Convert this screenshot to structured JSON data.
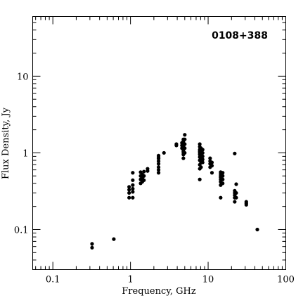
{
  "chart_data": {
    "type": "scatter",
    "title": "0108+388",
    "xlabel": "Frequency, GHz",
    "ylabel": "Flux Density, Jy",
    "x_scale": "log",
    "y_scale": "log",
    "xlim": [
      0.055,
      100
    ],
    "ylim": [
      0.03,
      60
    ],
    "grid": false,
    "legend": "none",
    "x_ticks": [
      {
        "value": 0.1,
        "label": "0.1"
      },
      {
        "value": 1,
        "label": "1"
      },
      {
        "value": 10,
        "label": "10"
      },
      {
        "value": 100,
        "label": "100"
      }
    ],
    "y_ticks": [
      {
        "value": 0.1,
        "label": "0.1"
      },
      {
        "value": 1,
        "label": "1"
      },
      {
        "value": 10,
        "label": "10"
      }
    ],
    "point_color": "#000000",
    "series": [
      {
        "points": [
          [
            0.32,
            0.065
          ],
          [
            0.32,
            0.058
          ],
          [
            0.61,
            0.075
          ],
          [
            0.96,
            0.26
          ],
          [
            0.96,
            0.3
          ],
          [
            0.96,
            0.33
          ],
          [
            0.96,
            0.36
          ],
          [
            1.07,
            0.26
          ],
          [
            1.07,
            0.31
          ],
          [
            1.07,
            0.34
          ],
          [
            1.07,
            0.38
          ],
          [
            1.07,
            0.44
          ],
          [
            1.07,
            0.55
          ],
          [
            1.35,
            0.4
          ],
          [
            1.35,
            0.45
          ],
          [
            1.35,
            0.5
          ],
          [
            1.35,
            0.56
          ],
          [
            1.42,
            0.42
          ],
          [
            1.42,
            0.47
          ],
          [
            1.42,
            0.52
          ],
          [
            1.49,
            0.44
          ],
          [
            1.49,
            0.5
          ],
          [
            1.49,
            0.57
          ],
          [
            1.66,
            0.58
          ],
          [
            1.66,
            0.62
          ],
          [
            2.3,
            0.55
          ],
          [
            2.3,
            0.6
          ],
          [
            2.3,
            0.65
          ],
          [
            2.3,
            0.72
          ],
          [
            2.3,
            0.78
          ],
          [
            2.3,
            0.84
          ],
          [
            2.3,
            0.88
          ],
          [
            2.3,
            0.92
          ],
          [
            2.7,
            1.0
          ],
          [
            3.9,
            1.25
          ],
          [
            3.9,
            1.3
          ],
          [
            4.8,
            0.85
          ],
          [
            4.8,
            0.95
          ],
          [
            4.8,
            1.0
          ],
          [
            4.8,
            1.05
          ],
          [
            4.8,
            1.1
          ],
          [
            4.8,
            1.15
          ],
          [
            4.8,
            1.2
          ],
          [
            4.8,
            1.25
          ],
          [
            4.8,
            1.3
          ],
          [
            4.8,
            1.35
          ],
          [
            4.8,
            1.42
          ],
          [
            4.8,
            1.5
          ],
          [
            5.0,
            1.0
          ],
          [
            5.0,
            1.15
          ],
          [
            5.0,
            1.3
          ],
          [
            5.0,
            1.5
          ],
          [
            5.0,
            1.72
          ],
          [
            4.6,
            1.15
          ],
          [
            4.6,
            1.25
          ],
          [
            4.6,
            1.35
          ],
          [
            7.8,
            0.45
          ],
          [
            7.8,
            0.62
          ],
          [
            7.8,
            0.7
          ],
          [
            7.8,
            0.8
          ],
          [
            7.8,
            0.88
          ],
          [
            7.8,
            0.95
          ],
          [
            7.8,
            1.0
          ],
          [
            7.8,
            1.05
          ],
          [
            7.8,
            1.1
          ],
          [
            7.8,
            1.2
          ],
          [
            7.8,
            1.3
          ],
          [
            8.1,
            0.65
          ],
          [
            8.1,
            0.75
          ],
          [
            8.1,
            0.85
          ],
          [
            8.1,
            0.95
          ],
          [
            8.1,
            1.05
          ],
          [
            8.1,
            1.15
          ],
          [
            8.5,
            0.75
          ],
          [
            8.5,
            0.82
          ],
          [
            8.5,
            0.9
          ],
          [
            8.5,
            1.0
          ],
          [
            8.5,
            1.1
          ],
          [
            10.6,
            0.65
          ],
          [
            10.6,
            0.72
          ],
          [
            10.6,
            0.78
          ],
          [
            10.6,
            0.85
          ],
          [
            11.2,
            0.55
          ],
          [
            11.2,
            0.68
          ],
          [
            11.2,
            0.75
          ],
          [
            14.5,
            0.26
          ],
          [
            14.5,
            0.38
          ],
          [
            14.5,
            0.42
          ],
          [
            14.5,
            0.45
          ],
          [
            14.5,
            0.48
          ],
          [
            14.5,
            0.5
          ],
          [
            14.5,
            0.53
          ],
          [
            14.5,
            0.56
          ],
          [
            15.4,
            0.4
          ],
          [
            15.4,
            0.45
          ],
          [
            15.4,
            0.5
          ],
          [
            15.4,
            0.55
          ],
          [
            22.0,
            0.23
          ],
          [
            22.0,
            0.26
          ],
          [
            22.0,
            0.28
          ],
          [
            22.0,
            0.3
          ],
          [
            22.0,
            0.32
          ],
          [
            22.0,
            0.98
          ],
          [
            23.0,
            0.26
          ],
          [
            23.0,
            0.3
          ],
          [
            23.0,
            0.39
          ],
          [
            31.0,
            0.21
          ],
          [
            31.0,
            0.22
          ],
          [
            31.0,
            0.23
          ],
          [
            43.0,
            0.1
          ]
        ]
      }
    ]
  }
}
